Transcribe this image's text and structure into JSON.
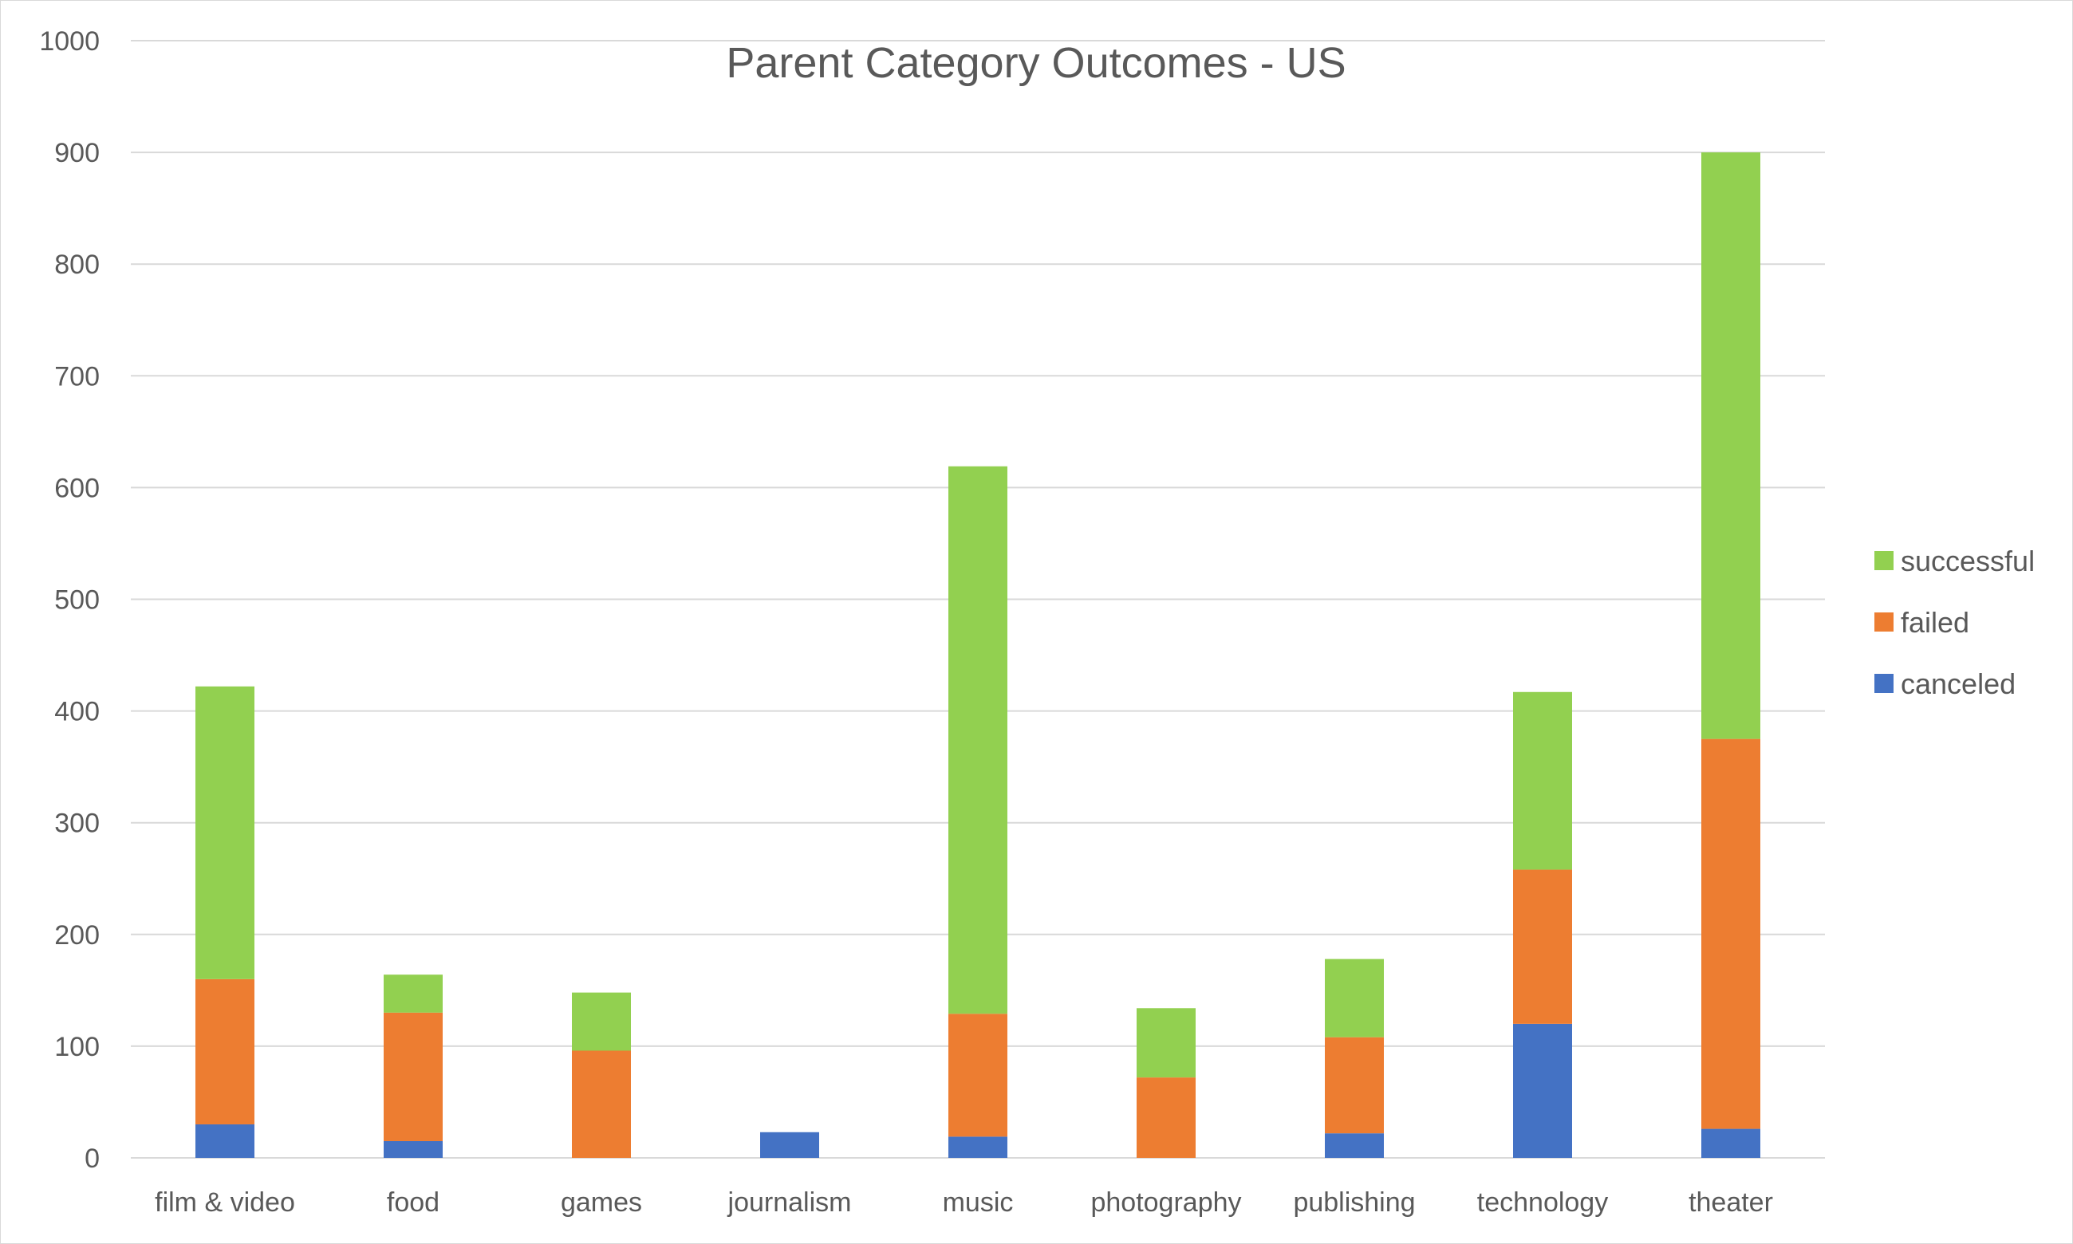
{
  "chart_data": {
    "type": "bar",
    "stacked": true,
    "title": "Parent Category Outcomes - US",
    "xlabel": "",
    "ylabel": "",
    "ylim": [
      0,
      1000
    ],
    "yticks": [
      0,
      100,
      200,
      300,
      400,
      500,
      600,
      700,
      800,
      900,
      1000
    ],
    "grid": true,
    "legend_position": "right",
    "categories": [
      "film & video",
      "food",
      "games",
      "journalism",
      "music",
      "photography",
      "publishing",
      "technology",
      "theater"
    ],
    "series": [
      {
        "name": "canceled",
        "color": "#4472C4",
        "values": [
          30,
          15,
          0,
          23,
          19,
          0,
          22,
          120,
          26
        ]
      },
      {
        "name": "failed",
        "color": "#ED7D31",
        "values": [
          130,
          115,
          96,
          0,
          110,
          72,
          86,
          138,
          349
        ]
      },
      {
        "name": "successful",
        "color": "#92D050",
        "values": [
          262,
          34,
          52,
          0,
          490,
          62,
          70,
          159,
          525
        ]
      }
    ]
  }
}
